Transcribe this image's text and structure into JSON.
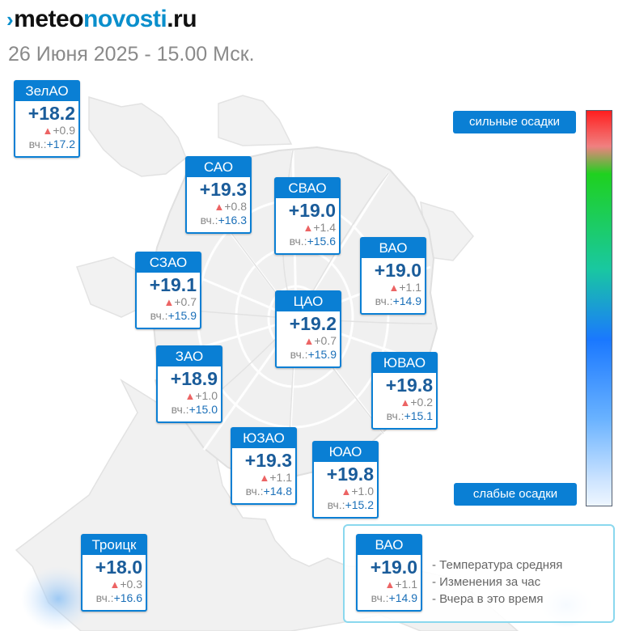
{
  "header": {
    "logo_mark": "›",
    "logo_part1": "meteo",
    "logo_part2": "novosti",
    "logo_part3": ".ru",
    "date_title": "26 Июня 2025 - 15.00 Мск."
  },
  "labels": {
    "change_arrow": "▲",
    "yesterday_prefix": "вч.:"
  },
  "districts": [
    {
      "name": "ЗелАО",
      "temp": "+18.2",
      "change": "+0.9",
      "yesterday": "+17.2"
    },
    {
      "name": "САО",
      "temp": "+19.3",
      "change": "+0.8",
      "yesterday": "+16.3"
    },
    {
      "name": "СВАО",
      "temp": "+19.0",
      "change": "+1.4",
      "yesterday": "+15.6"
    },
    {
      "name": "ВАО",
      "temp": "+19.0",
      "change": "+1.1",
      "yesterday": "+14.9"
    },
    {
      "name": "СЗАО",
      "temp": "+19.1",
      "change": "+0.7",
      "yesterday": "+15.9"
    },
    {
      "name": "ЦАО",
      "temp": "+19.2",
      "change": "+0.7",
      "yesterday": "+15.9"
    },
    {
      "name": "ЗАО",
      "temp": "+18.9",
      "change": "+1.0",
      "yesterday": "+15.0"
    },
    {
      "name": "ЮВАО",
      "temp": "+19.8",
      "change": "+0.2",
      "yesterday": "+15.1"
    },
    {
      "name": "ЮЗАО",
      "temp": "+19.3",
      "change": "+1.1",
      "yesterday": "+14.8"
    },
    {
      "name": "ЮАО",
      "temp": "+19.8",
      "change": "+1.0",
      "yesterday": "+15.2"
    },
    {
      "name": "Троицк",
      "temp": "+18.0",
      "change": "+0.3",
      "yesterday": "+16.6"
    }
  ],
  "precip_scale": {
    "top_label": "сильные осадки",
    "bottom_label": "слабые осадки",
    "colors": [
      "#ff1f1f",
      "#f08080",
      "#1fd11f",
      "#19c8a0",
      "#1a78ff",
      "#69b2ff",
      "#cfe5ff"
    ]
  },
  "legend": {
    "sample": {
      "name": "ВАО",
      "temp": "+19.0",
      "change": "+1.1",
      "yesterday": "+14.9"
    },
    "line1": "- Температура средняя",
    "line2": "- Изменения за час",
    "line3": "- Вчера в это время"
  },
  "colors": {
    "accent": "#0a7fd4",
    "temp_text": "#1a5c9a",
    "change_up": "#ec6464",
    "legend_border": "#8ad8ee"
  }
}
